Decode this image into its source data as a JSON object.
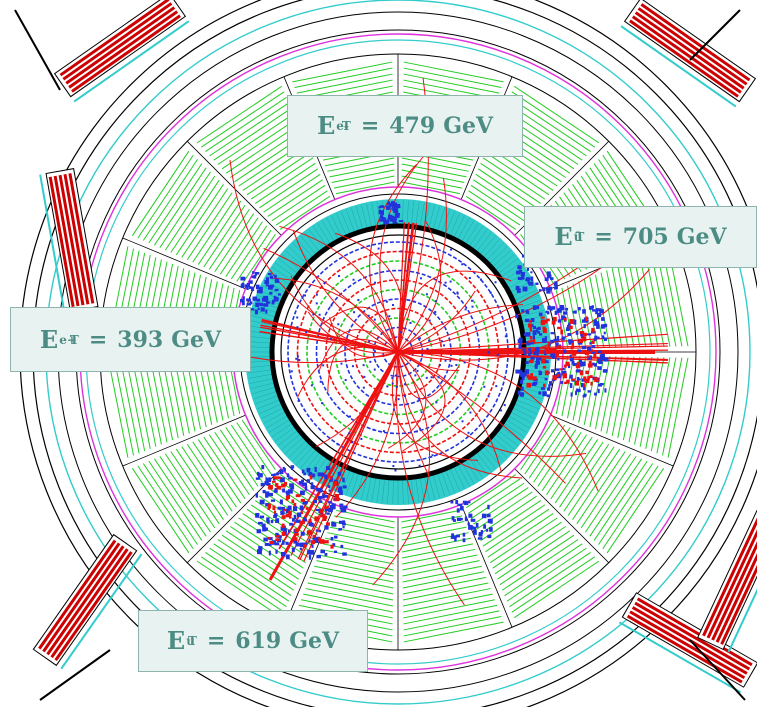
{
  "labels": {
    "electron_minus": {
      "symbol": "E",
      "sub": "T",
      "sup": "e-",
      "value": "479",
      "unit": "GeV"
    },
    "quark_bar": {
      "symbol": "E",
      "sub": "T",
      "sup": "ū",
      "value": "705",
      "unit": "GeV"
    },
    "electron_plus": {
      "symbol": "E",
      "sub": "T",
      "sup": "e+",
      "value": "393",
      "unit": "GeV"
    },
    "quark": {
      "symbol": "E",
      "sub": "T",
      "sup": "u",
      "value": "619",
      "unit": "GeV"
    }
  },
  "colors": {
    "background": "#ffffff",
    "detector_rings": "#000000",
    "calorimeter": "#22cc22",
    "cyan_layer": "#33cccc",
    "tracks": "#ee1111",
    "hits": "#2233dd",
    "magenta_ring": "#dd33dd",
    "muon_chambers": "#cc0000",
    "label_text": "#4c8c84",
    "label_bg": "#e8f3f1"
  }
}
